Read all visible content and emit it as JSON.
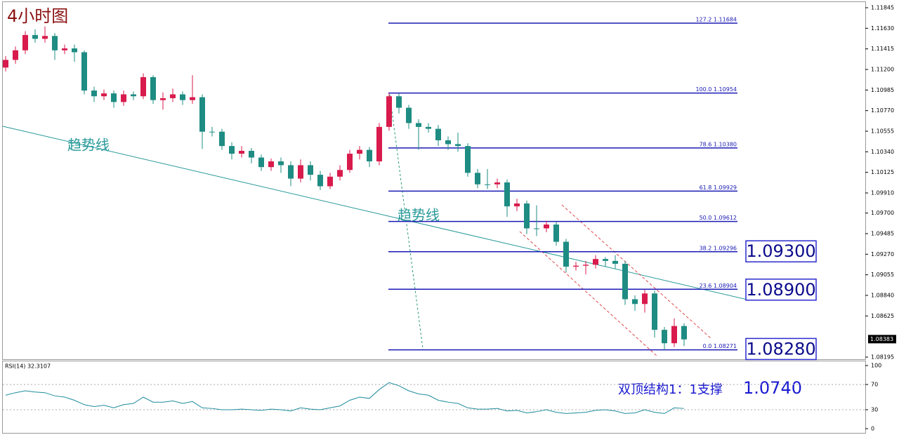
{
  "chart_data": [
    {
      "type": "candlestick",
      "title": "4小时图",
      "open": [
        1.1122,
        1.113,
        1.114,
        1.1156,
        1.1152,
        1.1155,
        1.114,
        1.1142,
        1.1138,
        1.1098,
        1.1092,
        1.1095,
        1.1086,
        1.1094,
        1.1092,
        1.1112,
        1.1088,
        1.109,
        1.1094,
        1.1088,
        1.1091,
        1.1055,
        1.1055,
        1.104,
        1.1032,
        1.1035,
        1.1028,
        1.1018,
        1.1024,
        1.102,
        1.1006,
        1.102,
        1.101,
        1.0998,
        1.1008,
        1.1015,
        1.1032,
        1.1036,
        1.1024,
        1.106,
        1.1092,
        1.108,
        1.1064,
        1.106,
        1.1058,
        1.1046,
        1.1042,
        1.104,
        1.1012,
        1.1,
        1.1,
        1.1002,
        1.0977,
        1.098,
        1.0954,
        1.0954,
        1.0958,
        1.094,
        1.0914,
        1.0915,
        1.0916,
        1.0922,
        1.092,
        1.0917,
        1.088,
        1.0875,
        1.0886,
        1.0848,
        1.0834,
        1.0852
      ],
      "high": [
        1.1134,
        1.1144,
        1.116,
        1.1162,
        1.1165,
        1.1158,
        1.1146,
        1.1146,
        1.114,
        1.1102,
        1.1099,
        1.1098,
        1.1098,
        1.1097,
        1.1116,
        1.1114,
        1.1096,
        1.11,
        1.1097,
        1.1114,
        1.1094,
        1.106,
        1.1058,
        1.1044,
        1.104,
        1.1038,
        1.1031,
        1.1027,
        1.1028,
        1.1024,
        1.1026,
        1.1024,
        1.1014,
        1.1012,
        1.102,
        1.1036,
        1.104,
        1.1039,
        1.1064,
        1.10954,
        1.1095,
        1.1083,
        1.1068,
        1.1064,
        1.1062,
        1.105,
        1.1054,
        1.1043,
        1.1016,
        1.1016,
        1.1006,
        1.1005,
        1.0985,
        1.0983,
        1.0978,
        1.0962,
        1.0961,
        1.0943,
        1.0919,
        1.092,
        1.0926,
        1.0924,
        1.0926,
        1.092,
        1.0884,
        1.089,
        1.0889,
        1.0851,
        1.086,
        1.0855
      ],
      "low": [
        1.1118,
        1.1126,
        1.1136,
        1.1148,
        1.1148,
        1.113,
        1.1136,
        1.1128,
        1.1094,
        1.1086,
        1.1088,
        1.108,
        1.1082,
        1.1088,
        1.1089,
        1.1084,
        1.1078,
        1.1086,
        1.1083,
        1.1084,
        1.1037,
        1.105,
        1.1036,
        1.1026,
        1.1028,
        1.1022,
        1.1014,
        1.1014,
        1.1012,
        1.0998,
        1.1002,
        1.1004,
        1.0994,
        1.0995,
        1.1004,
        1.1012,
        1.1026,
        1.1018,
        1.102,
        1.1056,
        1.1074,
        1.1058,
        1.1036,
        1.1054,
        1.104,
        1.1036,
        1.1034,
        1.1008,
        1.0996,
        1.0995,
        1.0996,
        1.0966,
        1.0972,
        1.0948,
        1.0946,
        1.095,
        1.0936,
        1.0908,
        1.091,
        1.0906,
        1.0912,
        1.0914,
        1.0912,
        1.0874,
        1.0868,
        1.0866,
        1.084,
        1.08271,
        1.083,
        1.0831
      ],
      "close": [
        1.113,
        1.114,
        1.1156,
        1.1152,
        1.1155,
        1.114,
        1.1142,
        1.1138,
        1.1098,
        1.1092,
        1.1095,
        1.1086,
        1.1094,
        1.1092,
        1.1112,
        1.1088,
        1.109,
        1.1094,
        1.1088,
        1.1091,
        1.1055,
        1.1055,
        1.104,
        1.1032,
        1.1035,
        1.1028,
        1.1018,
        1.1024,
        1.102,
        1.1006,
        1.102,
        1.101,
        1.0998,
        1.1008,
        1.1015,
        1.1032,
        1.1036,
        1.1024,
        1.106,
        1.1092,
        1.108,
        1.1064,
        1.106,
        1.1058,
        1.1046,
        1.1042,
        1.104,
        1.1012,
        1.1,
        1.1,
        1.1002,
        1.0977,
        1.098,
        1.0954,
        1.0954,
        1.0958,
        1.094,
        1.0914,
        1.0915,
        1.0916,
        1.0922,
        1.092,
        1.0917,
        1.088,
        1.0875,
        1.0886,
        1.0848,
        1.0834,
        1.0852,
        1.0838
      ],
      "up_color": "#d81b4c",
      "down_color": "#1e8c82",
      "ylim": [
        1.08173,
        1.11911
      ],
      "yticks": [
        1.11845,
        {
          "value": 1.1163,
          "label": "1.11630"
        },
        1.11415,
        {
          "value": 1.112,
          "label": "1.11200"
        },
        1.10985,
        {
          "value": 1.1077,
          "label": "1.10770"
        },
        1.10555,
        {
          "value": 1.1034,
          "label": "1.10340"
        },
        1.10125,
        {
          "value": 1.0991,
          "label": "1.09910"
        },
        {
          "value": 1.097,
          "label": "1.09700"
        },
        1.09485,
        {
          "value": 1.0927,
          "label": "1.09270"
        },
        1.09055,
        {
          "value": 1.0884,
          "label": "1.08840"
        },
        1.08625,
        1.08195
      ],
      "last_price": {
        "value": 1.08383,
        "label": "1.08383"
      },
      "fib_levels": [
        {
          "value": 1.11684,
          "text": "127.2  1.11684"
        },
        {
          "value": 1.10954,
          "text": "100.0  1.10954"
        },
        {
          "value": 1.1038,
          "text": "78.6  1.10380"
        },
        {
          "value": 1.09929,
          "text": "61.8  1.09929"
        },
        {
          "value": 1.09612,
          "text": "50.0  1.09612"
        },
        {
          "value": 1.09296,
          "text": "38.2  1.09296"
        },
        {
          "value": 1.08904,
          "text": "23.6  1.08904"
        },
        {
          "value": 1.08271,
          "text": "0.0  1.08271"
        }
      ],
      "fib_color": "#1a1ab4",
      "level_boxes": [
        {
          "value": 1.093,
          "label": "1.09300"
        },
        {
          "value": 1.089,
          "label": "1.08900"
        },
        {
          "value": 1.0828,
          "label": "1.08280"
        }
      ],
      "trendline_labels": [
        "趋势线",
        "趋势线"
      ]
    },
    {
      "type": "line",
      "title": "RSI(14) 32.3107",
      "color": "#1e8c9c",
      "values": [
        53,
        57,
        60,
        58,
        57,
        52,
        50,
        45,
        38,
        35,
        37,
        33,
        38,
        40,
        50,
        42,
        42,
        44,
        40,
        43,
        33,
        32,
        30,
        30,
        31,
        30,
        29,
        31,
        30,
        28,
        33,
        31,
        30,
        33,
        36,
        45,
        50,
        48,
        62,
        73,
        68,
        60,
        55,
        53,
        45,
        42,
        40,
        33,
        31,
        31,
        32,
        28,
        29,
        25,
        27,
        30,
        26,
        24,
        25,
        26,
        29,
        30,
        28,
        24,
        25,
        30,
        26,
        24,
        33,
        32
      ],
      "ylim": [
        -6.7,
        107.8
      ],
      "yticks": [
        100,
        70,
        30,
        0
      ],
      "grid_levels": [
        70,
        30
      ],
      "annotation": [
        "双顶结构1：1支撑",
        "1.0740"
      ]
    }
  ]
}
